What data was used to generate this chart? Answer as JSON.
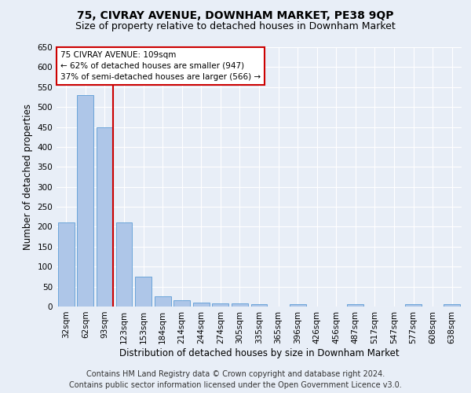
{
  "title1": "75, CIVRAY AVENUE, DOWNHAM MARKET, PE38 9QP",
  "title2": "Size of property relative to detached houses in Downham Market",
  "xlabel": "Distribution of detached houses by size in Downham Market",
  "ylabel": "Number of detached properties",
  "footer1": "Contains HM Land Registry data © Crown copyright and database right 2024.",
  "footer2": "Contains public sector information licensed under the Open Government Licence v3.0.",
  "bar_labels": [
    "32sqm",
    "62sqm",
    "93sqm",
    "123sqm",
    "153sqm",
    "184sqm",
    "214sqm",
    "244sqm",
    "274sqm",
    "305sqm",
    "335sqm",
    "365sqm",
    "396sqm",
    "426sqm",
    "456sqm",
    "487sqm",
    "517sqm",
    "547sqm",
    "577sqm",
    "608sqm",
    "638sqm"
  ],
  "bar_values": [
    210,
    530,
    450,
    210,
    75,
    25,
    15,
    10,
    8,
    8,
    5,
    0,
    5,
    0,
    0,
    5,
    0,
    0,
    5,
    0,
    5
  ],
  "bar_color": "#aec6e8",
  "bar_edge_color": "#5b9bd5",
  "red_line_color": "#cc0000",
  "annotation_text": "75 CIVRAY AVENUE: 109sqm\n← 62% of detached houses are smaller (947)\n37% of semi-detached houses are larger (566) →",
  "annotation_box_color": "#ffffff",
  "annotation_box_edge": "#cc0000",
  "ylim": [
    0,
    650
  ],
  "yticks": [
    0,
    50,
    100,
    150,
    200,
    250,
    300,
    350,
    400,
    450,
    500,
    550,
    600,
    650
  ],
  "background_color": "#e8eef7",
  "plot_bg_color": "#e8eef7",
  "grid_color": "#ffffff",
  "title1_fontsize": 10,
  "title2_fontsize": 9,
  "xlabel_fontsize": 8.5,
  "ylabel_fontsize": 8.5,
  "footer_fontsize": 7,
  "tick_fontsize": 7.5,
  "annot_fontsize": 7.5,
  "red_line_index": 2.45
}
